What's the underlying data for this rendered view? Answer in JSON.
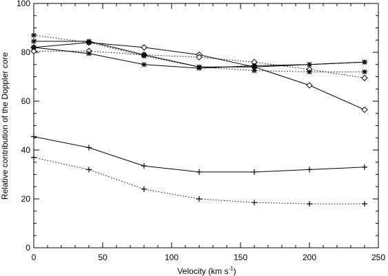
{
  "chart_data": {
    "type": "line",
    "title": "",
    "xlabel": "Velocity (km s",
    "xlabel_sup": "-1",
    "xlabel_end": ")",
    "ylabel": "Relative contribution of the Doppler core",
    "xlim": [
      0,
      250
    ],
    "ylim": [
      0,
      100
    ],
    "xticks": [
      0,
      50,
      100,
      150,
      200,
      250
    ],
    "yticks": [
      0,
      20,
      40,
      60,
      80,
      100
    ],
    "grid": false,
    "legend": "none",
    "x": [
      0,
      40,
      80,
      120,
      160,
      200,
      240
    ],
    "series": [
      {
        "marker": "diamond",
        "linestyle": "solid",
        "values": [
          82,
          84,
          82,
          79,
          74,
          66.5,
          56.5
        ]
      },
      {
        "marker": "diamond",
        "linestyle": "dotted",
        "values": [
          80.5,
          80.5,
          79,
          78,
          76,
          73,
          69.5
        ]
      },
      {
        "marker": "asterisk",
        "linestyle": "solid",
        "values": [
          84.5,
          84.5,
          79,
          74,
          74,
          75,
          76
        ]
      },
      {
        "marker": "asterisk",
        "linestyle": "solid",
        "values": [
          82,
          79.5,
          75,
          73.5,
          74.5,
          75,
          76
        ]
      },
      {
        "marker": "asterisk",
        "linestyle": "dotted",
        "values": [
          87,
          84,
          78.5,
          74,
          72.5,
          72,
          72
        ]
      },
      {
        "marker": "plus",
        "linestyle": "solid",
        "values": [
          45.5,
          41,
          33.5,
          31,
          31,
          32,
          33
        ]
      },
      {
        "marker": "plus",
        "linestyle": "dotted",
        "values": [
          37,
          32,
          24,
          20,
          18.5,
          18,
          18
        ]
      }
    ],
    "colors": {
      "line": "#000000",
      "background": "#ffffff"
    }
  }
}
